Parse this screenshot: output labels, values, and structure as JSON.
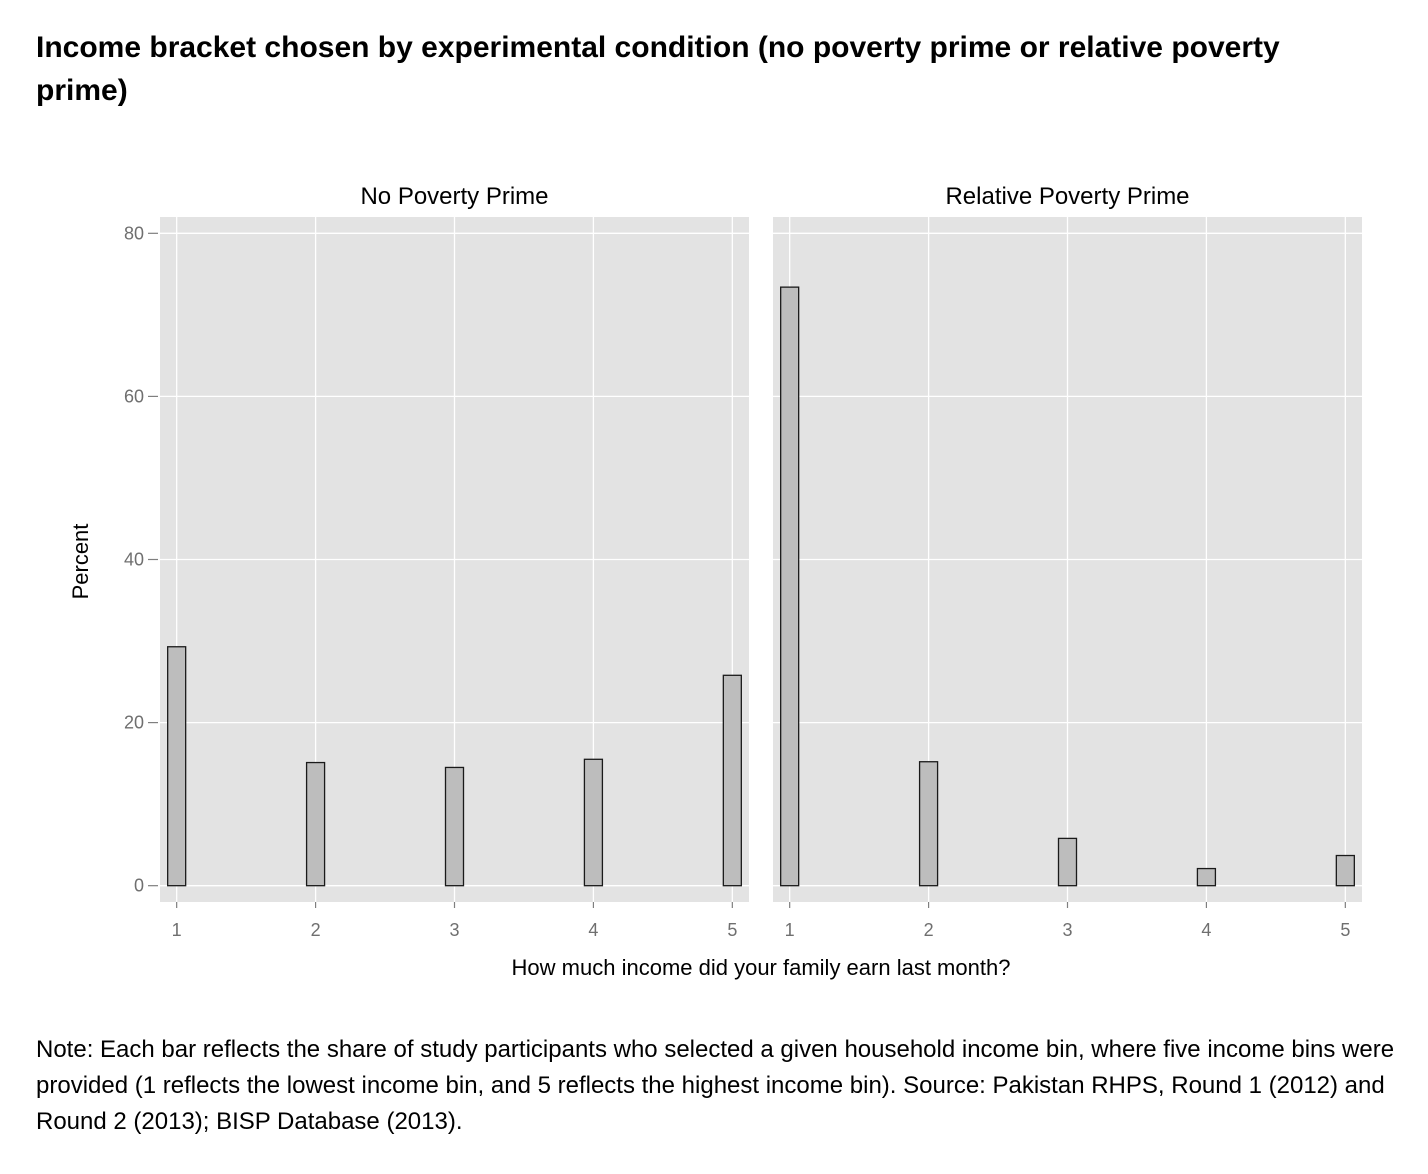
{
  "title": "Income bracket chosen by experimental condition (no poverty prime or relative poverty prime)",
  "note": "Note: Each bar reflects the share of study participants who selected a given household income bin, where five income bins were provided (1 reflects the lowest income bin, and 5 reflects the highest income bin). Source: Pakistan RHPS, Round 1 (2012) and Round 2 (2013); BISP Database (2013).",
  "colors": {
    "panel_bg": "#e3e3e3",
    "bar_fill": "#bdbdbd",
    "bar_stroke": "#1a1a1a",
    "grid": "#ffffff"
  },
  "chart_data": {
    "type": "bar",
    "xlabel": "How much income did your family earn last month?",
    "ylabel": "Percent",
    "ylim": [
      -2,
      82
    ],
    "yticks": [
      "0",
      "20",
      "40",
      "60",
      "80"
    ],
    "xlim": [
      0.88,
      5.12
    ],
    "xticks": [
      "1",
      "2",
      "3",
      "4",
      "5"
    ],
    "grid": true,
    "panels": [
      {
        "name": "No Poverty Prime",
        "x": [
          1,
          2,
          3,
          4,
          5
        ],
        "values": [
          29.3,
          15.1,
          14.5,
          15.5,
          25.8
        ]
      },
      {
        "name": "Relative Poverty Prime",
        "x": [
          1,
          2,
          3,
          4,
          5
        ],
        "values": [
          73.4,
          15.2,
          5.8,
          2.1,
          3.7
        ]
      }
    ]
  }
}
